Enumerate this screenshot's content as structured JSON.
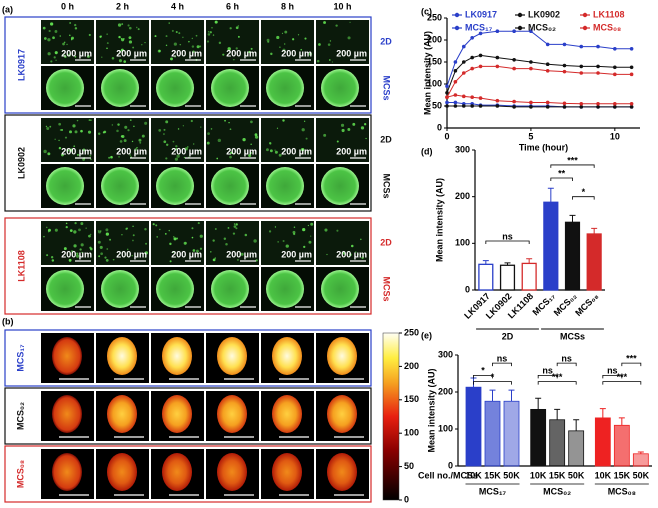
{
  "figure_a": {
    "label": "(a)",
    "columns": [
      "0 h",
      "2 h",
      "4 h",
      "6 h",
      "8 h",
      "10 h"
    ],
    "scale_bar": "200 µm",
    "groups": [
      {
        "name": "LK0917",
        "color": "#2a3fc9",
        "rows": [
          "2D",
          "MCSs"
        ]
      },
      {
        "name": "LK0902",
        "color": "#111111",
        "rows": [
          "2D",
          "MCSs"
        ]
      },
      {
        "name": "LK1108",
        "color": "#d42a2a",
        "rows": [
          "2D",
          "MCSs"
        ]
      }
    ]
  },
  "figure_b": {
    "label": "(b)",
    "rows": [
      {
        "name": "MCS₁₇",
        "color": "#2a3fc9"
      },
      {
        "name": "MCS₀₂",
        "color": "#111111"
      },
      {
        "name": "MCS₀₈",
        "color": "#d42a2a"
      }
    ],
    "colorbar": {
      "lim": [
        0,
        250
      ],
      "ticks": [
        0,
        50,
        100,
        150,
        200,
        250
      ]
    }
  },
  "chart_data": [
    {
      "type": "line",
      "label": "(c)",
      "x_label": "Time (hour)",
      "y_label": "Mean intensity (AU)",
      "x": [
        0,
        0.5,
        1,
        1.5,
        2,
        3,
        4,
        5,
        6,
        7,
        8,
        9,
        10,
        11
      ],
      "xlim": [
        0,
        11.5
      ],
      "xticks": [
        0,
        5,
        10
      ],
      "ylim": [
        0,
        250
      ],
      "yticks": [
        0,
        50,
        100,
        150,
        200,
        250
      ],
      "series": [
        {
          "name": "LK0917",
          "color": "#2a3fc9",
          "values": [
            58,
            58,
            55,
            55,
            52,
            52,
            50,
            50,
            50,
            48,
            48,
            48,
            48,
            48
          ]
        },
        {
          "name": "LK0902",
          "color": "#111111",
          "values": [
            50,
            50,
            50,
            50,
            50,
            50,
            48,
            48,
            48,
            48,
            48,
            48,
            48,
            48
          ]
        },
        {
          "name": "LK1108",
          "color": "#d42a2a",
          "values": [
            70,
            75,
            72,
            70,
            68,
            62,
            60,
            58,
            58,
            56,
            55,
            55,
            55,
            55
          ]
        },
        {
          "name": "MCS₁₇",
          "color": "#2a3fc9",
          "values": [
            95,
            150,
            185,
            205,
            215,
            220,
            220,
            220,
            190,
            190,
            185,
            185,
            180,
            180
          ]
        },
        {
          "name": "MCS₀₂",
          "color": "#111111",
          "values": [
            80,
            130,
            150,
            160,
            165,
            160,
            155,
            150,
            145,
            142,
            140,
            140,
            138,
            138
          ]
        },
        {
          "name": "MCS₀₈",
          "color": "#d42a2a",
          "values": [
            70,
            105,
            125,
            135,
            140,
            140,
            135,
            135,
            130,
            128,
            125,
            125,
            122,
            122
          ]
        }
      ]
    },
    {
      "type": "bar",
      "label": "(d)",
      "y_label": "Mean intensity (AU)",
      "categories": [
        "LK0917",
        "LK0902",
        "LK1108",
        "MCS₁₇",
        "MCS₀₂",
        "MCS₀₈"
      ],
      "values": [
        55,
        53,
        57,
        188,
        145,
        120
      ],
      "errors": [
        8,
        5,
        10,
        30,
        15,
        12
      ],
      "colors": [
        "#2a3fc9",
        "#111111",
        "#d42a2a",
        "#2a3fc9",
        "#111111",
        "#d42a2a"
      ],
      "filled": [
        false,
        false,
        false,
        true,
        true,
        true
      ],
      "groups": [
        "2D",
        "MCSs"
      ],
      "annotations": [
        "ns",
        "***",
        "**",
        "*"
      ],
      "ylim": [
        0,
        300
      ],
      "yticks": [
        0,
        100,
        200,
        300
      ]
    },
    {
      "type": "grouped-bar",
      "label": "(e)",
      "y_label": "Mean intensity (AU)",
      "x_label": "Cell no./MCSs",
      "ylim": [
        0,
        300
      ],
      "yticks": [
        0,
        100,
        200,
        300
      ],
      "groups": [
        {
          "name": "MCS₁₇",
          "color": "#2a3fc9",
          "labels": [
            "10K",
            "15K",
            "50K"
          ],
          "values": [
            213,
            175,
            175
          ],
          "errors": [
            25,
            30,
            30
          ],
          "annotations": [
            "*",
            "ns",
            "*"
          ]
        },
        {
          "name": "MCS₀₂",
          "color": "#111111",
          "labels": [
            "10K",
            "15K",
            "50K"
          ],
          "values": [
            153,
            125,
            95
          ],
          "errors": [
            30,
            28,
            30
          ],
          "annotations": [
            "ns",
            "ns",
            "***"
          ]
        },
        {
          "name": "MCS₀₈",
          "color": "#ee2222",
          "labels": [
            "10K",
            "15K",
            "50K"
          ],
          "values": [
            130,
            110,
            33
          ],
          "errors": [
            25,
            20,
            5
          ],
          "annotations": [
            "ns",
            "***",
            "***"
          ]
        }
      ]
    }
  ]
}
